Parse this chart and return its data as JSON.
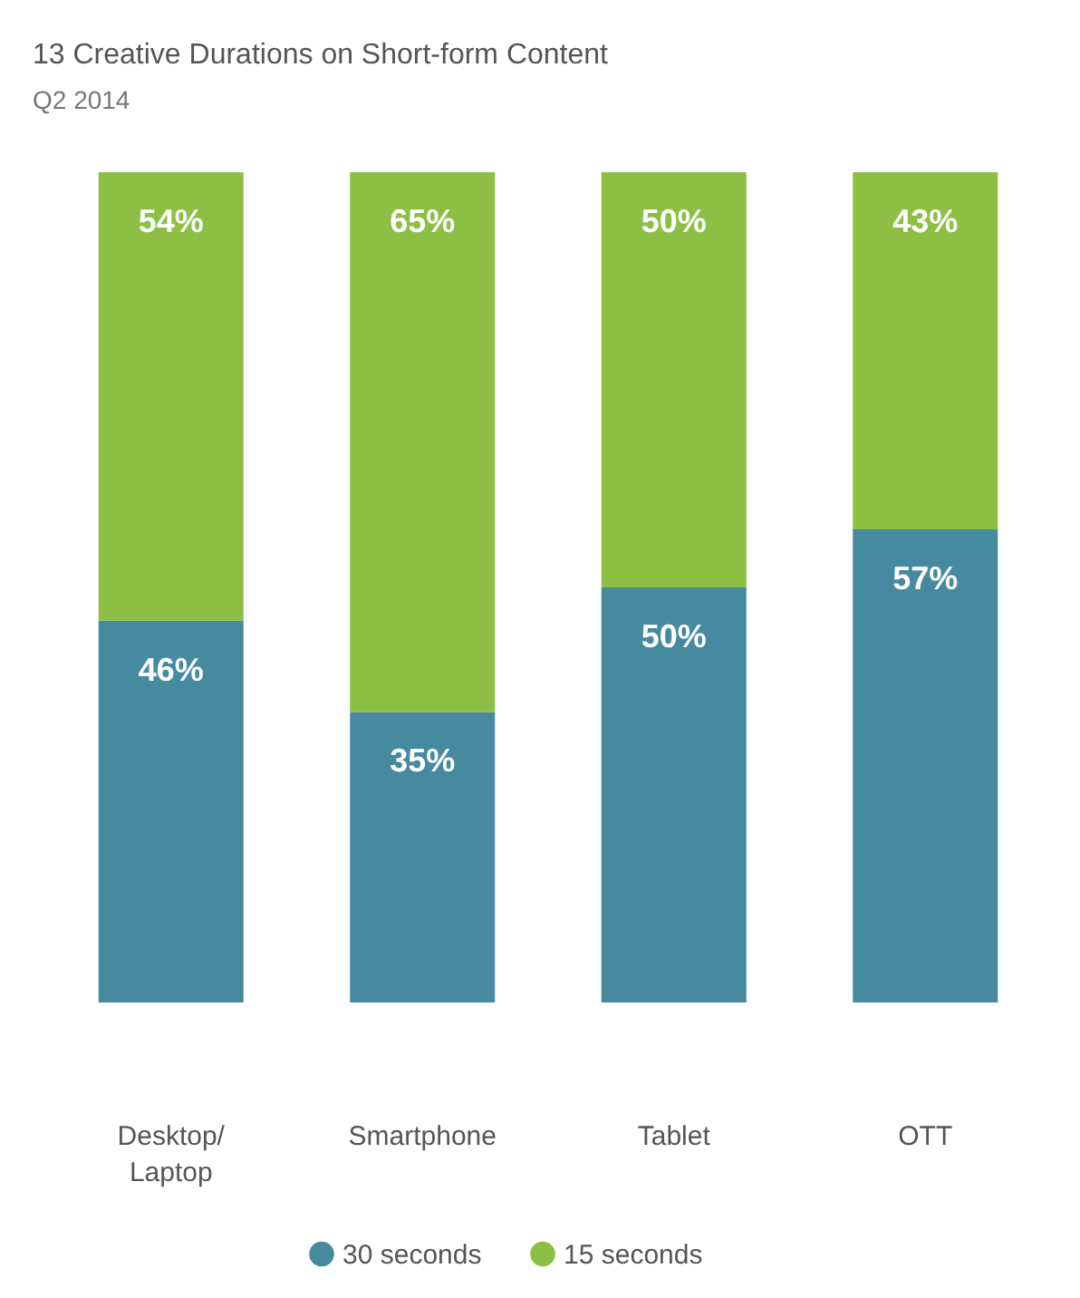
{
  "chart_data": {
    "type": "bar",
    "title": "13 Creative Durations on Short-form Content",
    "subtitle": "Q2 2014",
    "categories": [
      "Desktop/\nLaptop",
      "Smartphone",
      "Tablet",
      "OTT"
    ],
    "stacked": true,
    "ylim": [
      0,
      100
    ],
    "tick_labels": "x",
    "legend": "bottom",
    "series": [
      {
        "name": "30 seconds",
        "color": "#468aa0",
        "values": [
          46,
          35,
          50,
          57
        ],
        "value_labels": [
          "46%",
          "35%",
          "50%",
          "57%"
        ]
      },
      {
        "name": "15 seconds",
        "color": "#8cbf44",
        "values": [
          54,
          65,
          50,
          43
        ],
        "value_labels": [
          "54%",
          "65%",
          "50%",
          "43%"
        ]
      }
    ]
  }
}
